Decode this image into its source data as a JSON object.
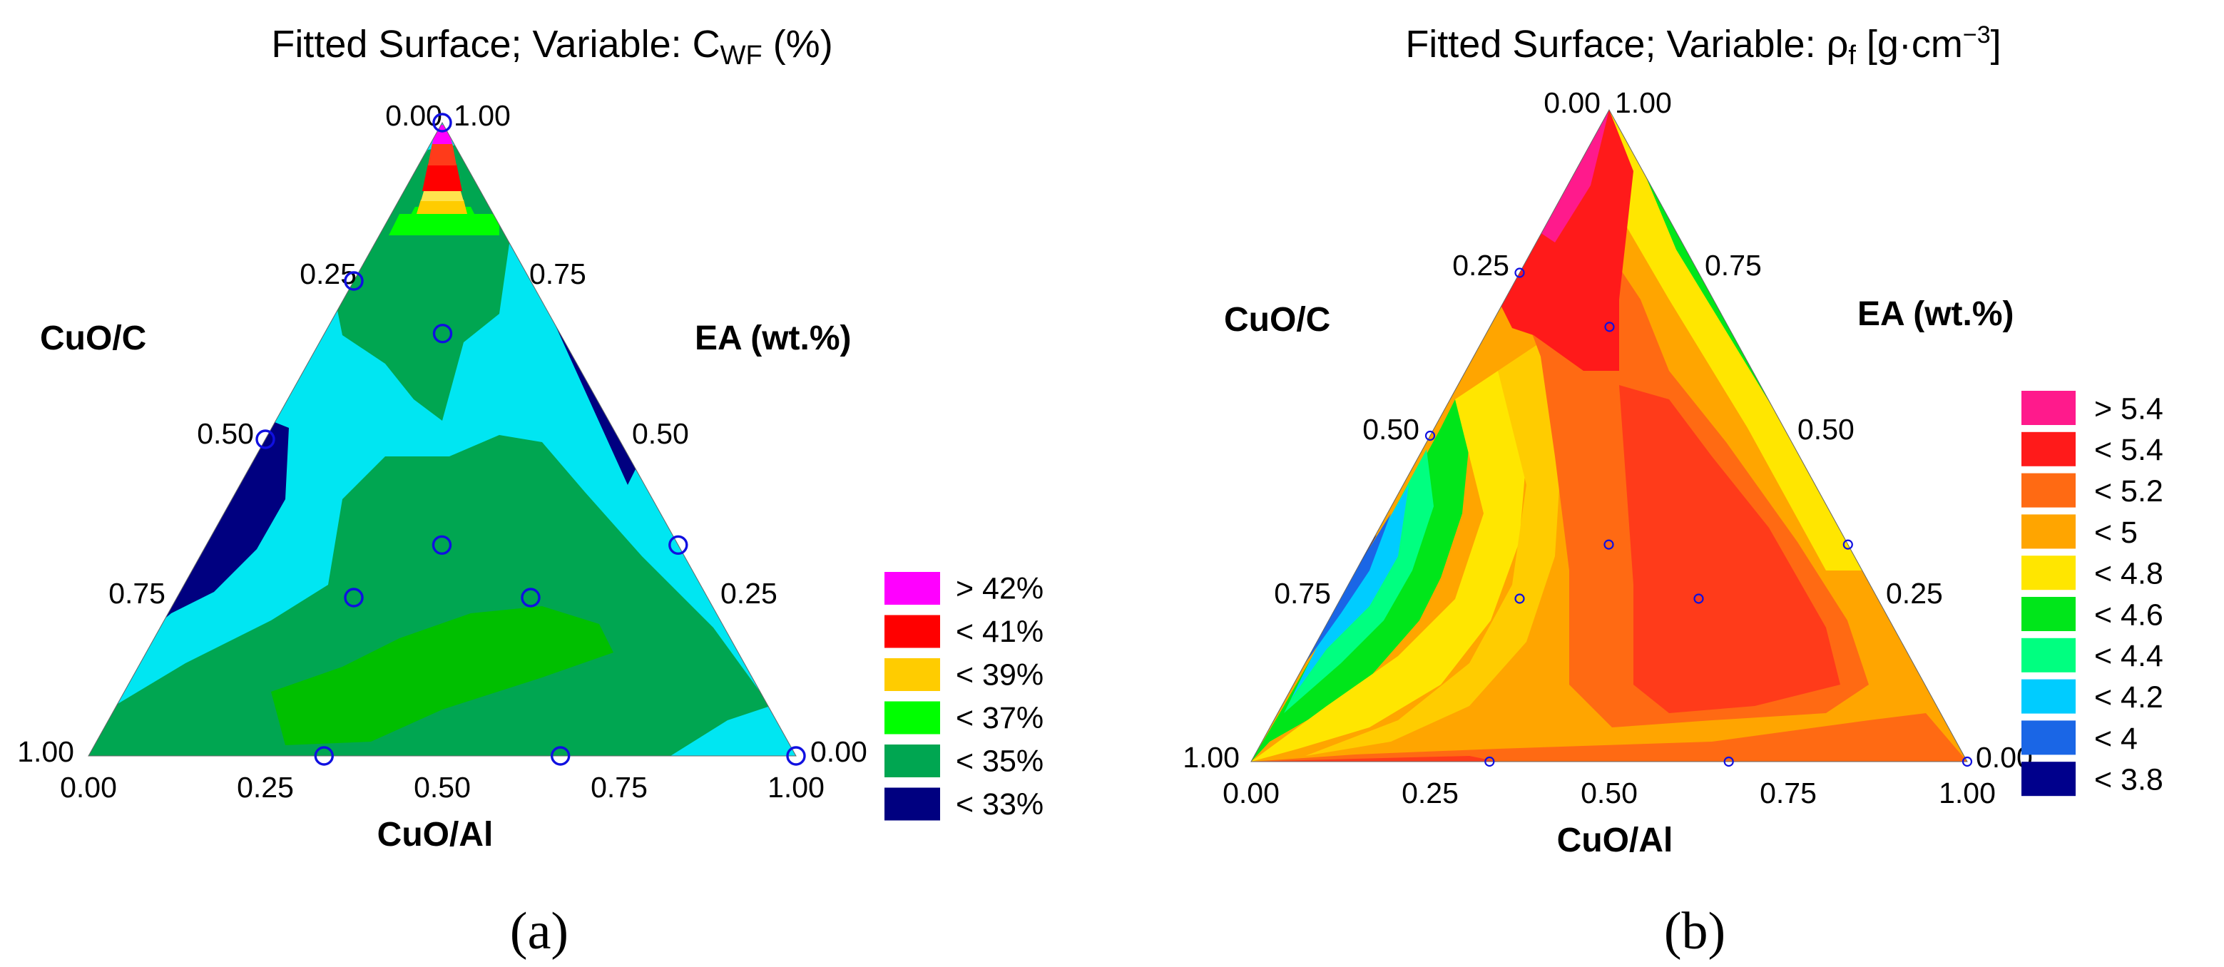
{
  "chart_data": [
    {
      "type": "ternary-contour",
      "title_prefix": "Fitted Surface; Variable: C",
      "title_sub": "WF",
      "title_suffix": " (%)",
      "axes": {
        "left": "CuO/C",
        "right": "EA (wt.%)",
        "bottom": "CuO/Al"
      },
      "ticks": {
        "left": [
          "1.00",
          "0.75",
          "0.50",
          "0.25",
          "0.00"
        ],
        "right": [
          "0.00",
          "0.25",
          "0.50",
          "0.75",
          "1.00"
        ],
        "bottom": [
          "0.00",
          "0.25",
          "0.50",
          "0.75",
          "1.00"
        ]
      },
      "legend": [
        {
          "label": "> 42%",
          "color": "#ff00ff"
        },
        {
          "label": "< 41%",
          "color": "#ff0000"
        },
        {
          "label": "< 39%",
          "color": "#ffcc00"
        },
        {
          "label": "< 37%",
          "color": "#00ff00"
        },
        {
          "label": "< 35%",
          "color": "#00a651"
        },
        {
          "label": "< 33%",
          "color": "#000080"
        }
      ],
      "palette": {
        "light_cyan": "#00e6f2",
        "green": "#00a651",
        "bright_green": "#00bf00",
        "navy": "#000080",
        "marker": "#1010e0"
      },
      "design_points": [
        {
          "cuo_al": 0.0,
          "ea": 1.0
        },
        {
          "cuo_al": 0.0,
          "ea": 0.75
        },
        {
          "cuo_al": 0.333,
          "ea": 0.0
        },
        {
          "cuo_al": 0.667,
          "ea": 0.0
        },
        {
          "cuo_al": 1.0,
          "ea": 0.0
        },
        {
          "cuo_al": 0.0,
          "ea": 0.5
        },
        {
          "cuo_al": 0.167,
          "ea": 0.667
        },
        {
          "cuo_al": 0.333,
          "ea": 0.333
        },
        {
          "cuo_al": 0.25,
          "ea": 0.25
        },
        {
          "cuo_al": 0.5,
          "ea": 0.25
        },
        {
          "cuo_al": 0.667,
          "ea": 0.333
        }
      ],
      "panel_label": "(a)"
    },
    {
      "type": "ternary-contour",
      "title_prefix": "Fitted Surface; Variable: ρ",
      "title_sub": "f",
      "title_suffix": " [g·cm",
      "title_sup": "−3",
      "title_end": "]",
      "axes": {
        "left": "CuO/C",
        "right": "EA (wt.%)",
        "bottom": "CuO/Al"
      },
      "ticks": {
        "left": [
          "1.00",
          "0.75",
          "0.50",
          "0.25",
          "0.00"
        ],
        "right": [
          "0.00",
          "0.25",
          "0.50",
          "0.75",
          "1.00"
        ],
        "bottom": [
          "0.00",
          "0.25",
          "0.50",
          "0.75",
          "1.00"
        ]
      },
      "legend": [
        {
          "label": "> 5.4",
          "color": "#ff1a8c"
        },
        {
          "label": "< 5.4",
          "color": "#ff1a1a"
        },
        {
          "label": "< 5.2",
          "color": "#ff6a13"
        },
        {
          "label": "< 5",
          "color": "#ffa500"
        },
        {
          "label": "< 4.8",
          "color": "#ffe600"
        },
        {
          "label": "< 4.6",
          "color": "#00e61a"
        },
        {
          "label": "< 4.4",
          "color": "#00ff80"
        },
        {
          "label": "< 4.2",
          "color": "#00ccff"
        },
        {
          "label": "< 4",
          "color": "#1a66e6"
        },
        {
          "label": "< 3.8",
          "color": "#00008c"
        }
      ],
      "palette": {
        "marker": "#1010e0"
      },
      "design_points": [
        {
          "cuo_al": 0.0,
          "ea": 0.75
        },
        {
          "cuo_al": 0.0,
          "ea": 0.5
        },
        {
          "cuo_al": 0.333,
          "ea": 0.0
        },
        {
          "cuo_al": 0.667,
          "ea": 0.0
        },
        {
          "cuo_al": 1.0,
          "ea": 0.0
        },
        {
          "cuo_al": 0.167,
          "ea": 0.667
        },
        {
          "cuo_al": 0.333,
          "ea": 0.333
        },
        {
          "cuo_al": 0.25,
          "ea": 0.25
        },
        {
          "cuo_al": 0.5,
          "ea": 0.25
        },
        {
          "cuo_al": 0.667,
          "ea": 0.333
        }
      ],
      "panel_label": "(b)"
    }
  ]
}
